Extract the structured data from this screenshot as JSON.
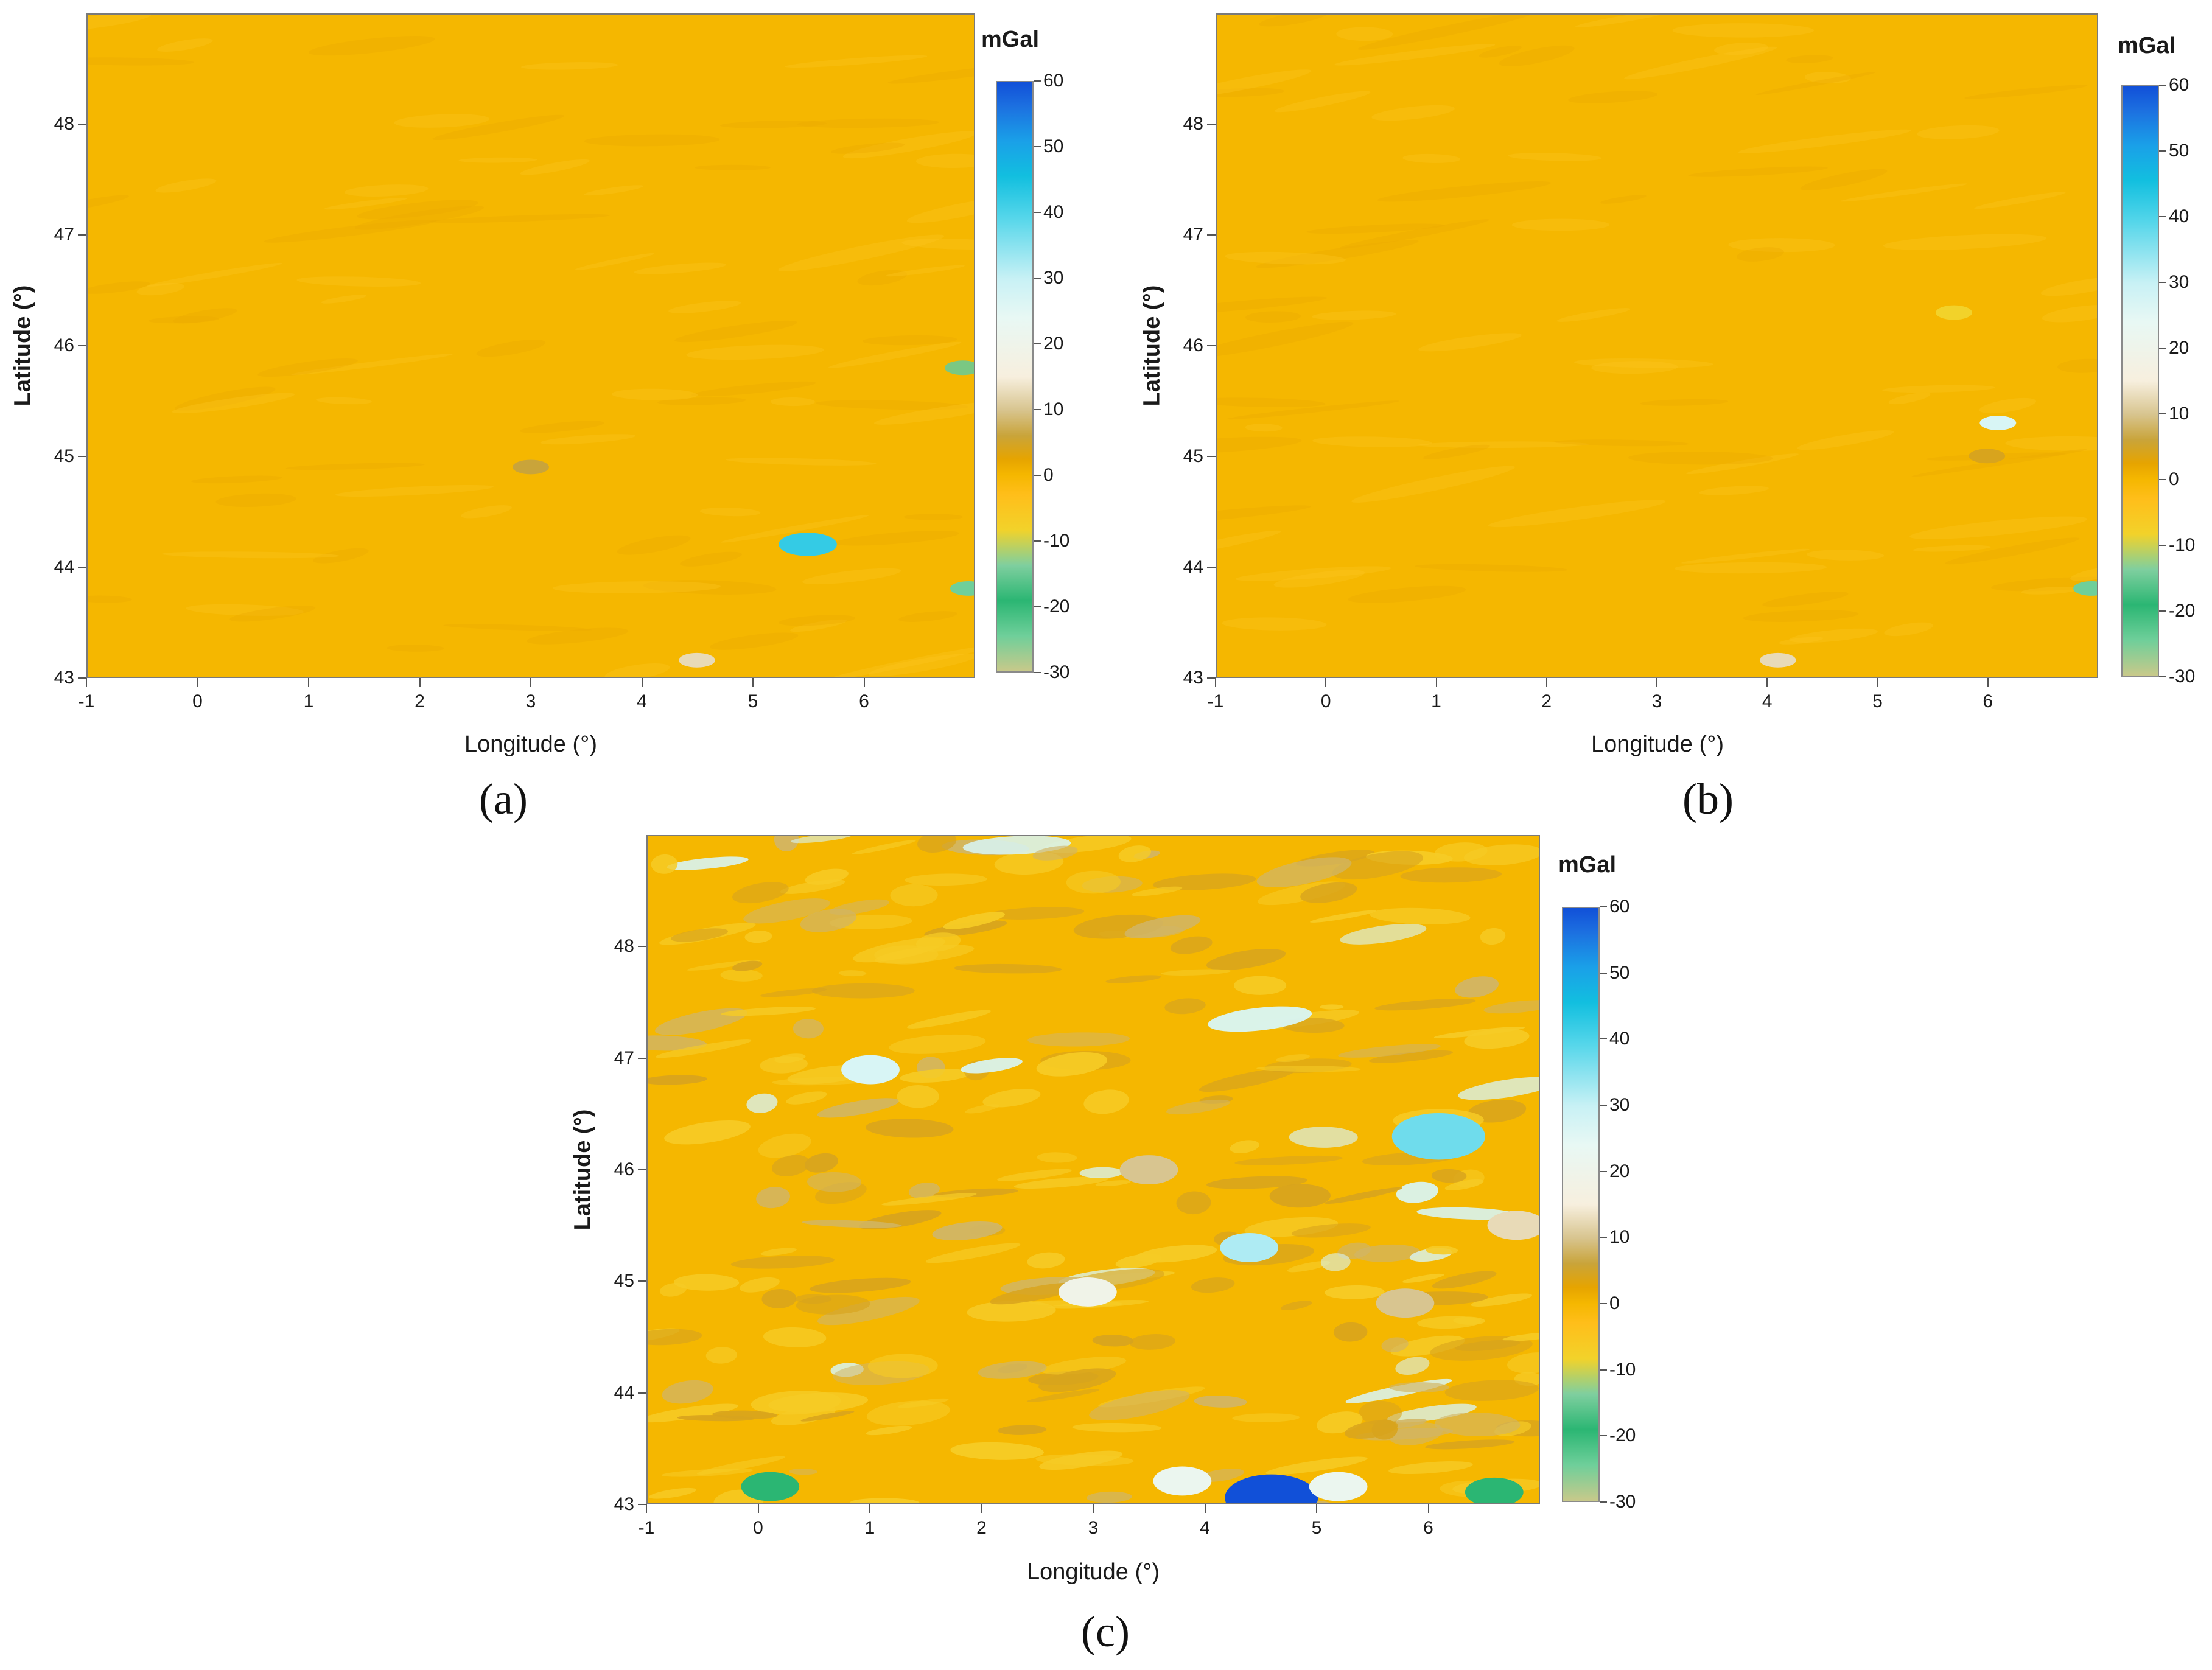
{
  "chart_data": [
    {
      "type": "heatmap",
      "panel_label": "(a)",
      "xlabel": "Longitude (°)",
      "ylabel": "Latitude (°)",
      "x_ticks": [
        "-1",
        "0",
        "1",
        "2",
        "3",
        "4",
        "5",
        "6"
      ],
      "y_ticks": [
        "43",
        "44",
        "45",
        "46",
        "47",
        "48"
      ],
      "xlim": [
        -1,
        7
      ],
      "ylim": [
        43,
        49
      ],
      "colorbar": {
        "unit": "mGal",
        "ticks": [
          "60",
          "50",
          "40",
          "30",
          "20",
          "10",
          "0",
          "-10",
          "-20",
          "-30"
        ],
        "range": [
          -30,
          60
        ]
      },
      "dominant_value_mgal": 0,
      "features": [
        {
          "lon": 3.0,
          "lat": 44.9,
          "value": 8
        },
        {
          "lon": 6.95,
          "lat": 43.8,
          "value": -25
        },
        {
          "lon": 4.5,
          "lat": 43.15,
          "value": 15
        },
        {
          "lon": 5.5,
          "lat": 44.2,
          "value": 45
        },
        {
          "lon": 6.9,
          "lat": 45.8,
          "value": -15
        }
      ]
    },
    {
      "type": "heatmap",
      "panel_label": "(b)",
      "xlabel": "Longitude (°)",
      "ylabel": "Latitude (°)",
      "x_ticks": [
        "-1",
        "0",
        "1",
        "2",
        "3",
        "4",
        "5",
        "6"
      ],
      "y_ticks": [
        "43",
        "44",
        "45",
        "46",
        "47",
        "48"
      ],
      "xlim": [
        -1,
        7
      ],
      "ylim": [
        43,
        49
      ],
      "colorbar": {
        "unit": "mGal",
        "ticks": [
          "60",
          "50",
          "40",
          "30",
          "20",
          "10",
          "0",
          "-10",
          "-20",
          "-30"
        ],
        "range": [
          -30,
          60
        ]
      },
      "dominant_value_mgal": 0,
      "features": [
        {
          "lon": 6.0,
          "lat": 45.0,
          "value": 6
        },
        {
          "lon": 5.7,
          "lat": 46.3,
          "value": -8
        },
        {
          "lon": 4.1,
          "lat": 43.15,
          "value": 15
        },
        {
          "lon": 6.95,
          "lat": 43.8,
          "value": -25
        },
        {
          "lon": 6.1,
          "lat": 45.3,
          "value": 30
        }
      ]
    },
    {
      "type": "heatmap",
      "panel_label": "(c)",
      "xlabel": "Longitude (°)",
      "ylabel": "Latitude (°)",
      "x_ticks": [
        "-1",
        "0",
        "1",
        "2",
        "3",
        "4",
        "5",
        "6"
      ],
      "y_ticks": [
        "43",
        "44",
        "45",
        "46",
        "47",
        "48"
      ],
      "xlim": [
        -1,
        7
      ],
      "ylim": [
        43,
        49
      ],
      "colorbar": {
        "unit": "mGal",
        "ticks": [
          "60",
          "50",
          "40",
          "30",
          "20",
          "10",
          "0",
          "-10",
          "-20",
          "-30"
        ],
        "range": [
          -30,
          60
        ]
      },
      "dominant_value_mgal": 0,
      "features": [
        {
          "lon": 4.6,
          "lat": 43.05,
          "value": 60
        },
        {
          "lon": 3.8,
          "lat": 43.2,
          "value": 25
        },
        {
          "lon": 5.2,
          "lat": 43.15,
          "value": 25
        },
        {
          "lon": 2.95,
          "lat": 44.9,
          "value": 22
        },
        {
          "lon": 6.6,
          "lat": 43.1,
          "value": -20
        },
        {
          "lon": 0.1,
          "lat": 43.15,
          "value": -20
        },
        {
          "lon": 6.1,
          "lat": 46.3,
          "value": 40
        },
        {
          "lon": 6.8,
          "lat": 45.5,
          "value": 15
        },
        {
          "lon": 1.0,
          "lat": 46.9,
          "value": 30
        },
        {
          "lon": 4.4,
          "lat": 45.3,
          "value": 35
        },
        {
          "lon": 3.5,
          "lat": 46.0,
          "value": 12
        },
        {
          "lon": 5.8,
          "lat": 44.8,
          "value": 12
        }
      ]
    }
  ]
}
